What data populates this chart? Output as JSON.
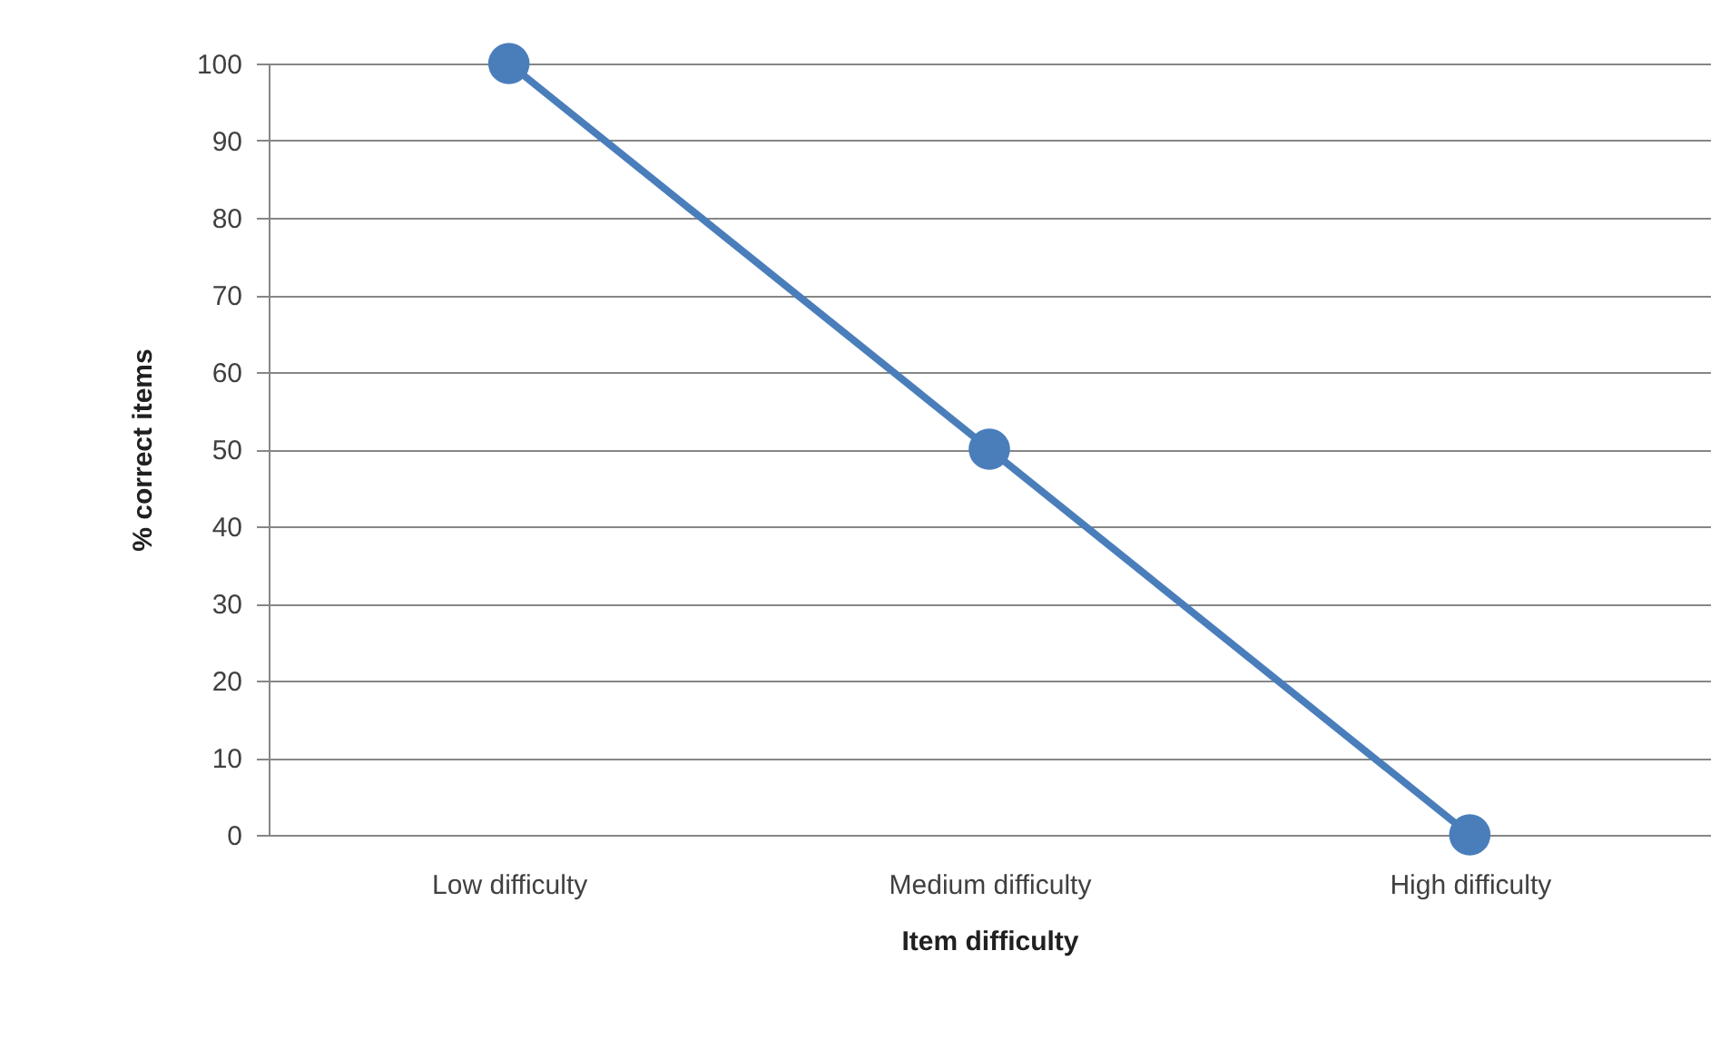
{
  "chart_data": {
    "type": "line",
    "xlabel": "Item difficulty",
    "ylabel": "% correct items",
    "categories": [
      "Low difficulty",
      "Medium difficulty",
      "High difficulty"
    ],
    "series": [
      {
        "color": "#4a7ebb",
        "values": [
          100,
          50,
          0
        ]
      }
    ],
    "ylim": [
      0,
      100
    ],
    "yticks": [
      0,
      10,
      20,
      30,
      40,
      50,
      60,
      70,
      80,
      90,
      100
    ],
    "grid": "y",
    "marker": "circle",
    "line_style": "solid"
  }
}
